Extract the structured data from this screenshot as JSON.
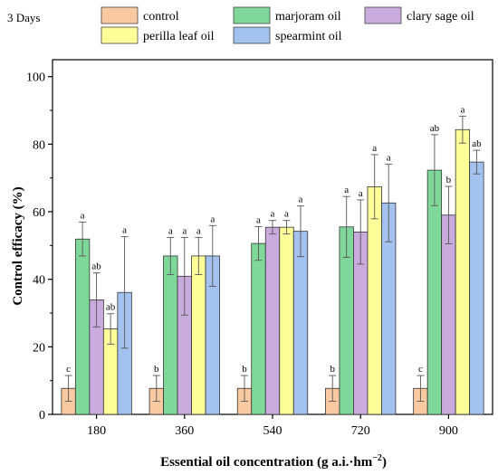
{
  "chart_data": {
    "type": "bar",
    "title": "3 Days",
    "xlabel": "Essential oil concentration (g a.i.·hm",
    "xlabel_sup": "−2",
    "xlabel_end": ")",
    "ylabel": "Control efficacy (%)",
    "ylim": [
      0,
      100
    ],
    "yticks": [
      0,
      20,
      40,
      60,
      80,
      100
    ],
    "categories": [
      "180",
      "360",
      "540",
      "720",
      "900"
    ],
    "legend_position": "top",
    "series": [
      {
        "name": "control",
        "color": "#f9c9a1",
        "values": [
          7.7,
          7.7,
          7.7,
          7.7,
          7.7
        ],
        "errors": [
          3.8,
          3.8,
          3.8,
          3.8,
          3.8
        ],
        "letters": [
          "c",
          "b",
          "b",
          "b",
          "c"
        ]
      },
      {
        "name": "marjoram oil",
        "color": "#7fd89a",
        "values": [
          51.9,
          46.9,
          50.6,
          55.5,
          72.3
        ],
        "errors": [
          5.0,
          5.5,
          5.0,
          9.0,
          10.5
        ],
        "letters": [
          "a",
          "a",
          "a",
          "a",
          "ab"
        ]
      },
      {
        "name": "clary sage oil",
        "color": "#c9acdd",
        "values": [
          33.9,
          40.9,
          55.4,
          54.0,
          59.0
        ],
        "errors": [
          8.0,
          11.5,
          2.0,
          9.5,
          8.5
        ],
        "letters": [
          "ab",
          "a",
          "a",
          "a",
          "b"
        ]
      },
      {
        "name": "perilla leaf oil",
        "color": "#ffff99",
        "values": [
          25.3,
          46.9,
          55.4,
          67.4,
          84.3
        ],
        "errors": [
          4.5,
          5.5,
          2.0,
          9.5,
          4.0
        ],
        "letters": [
          "ab",
          "a",
          "a",
          "a",
          "a"
        ]
      },
      {
        "name": "spearmint oil",
        "color": "#a3c2f0",
        "values": [
          36.1,
          46.9,
          54.2,
          62.6,
          74.7
        ],
        "errors": [
          16.5,
          9.0,
          7.5,
          11.5,
          3.5
        ],
        "letters": [
          "a",
          "a",
          "a",
          "a",
          "ab"
        ]
      }
    ]
  }
}
